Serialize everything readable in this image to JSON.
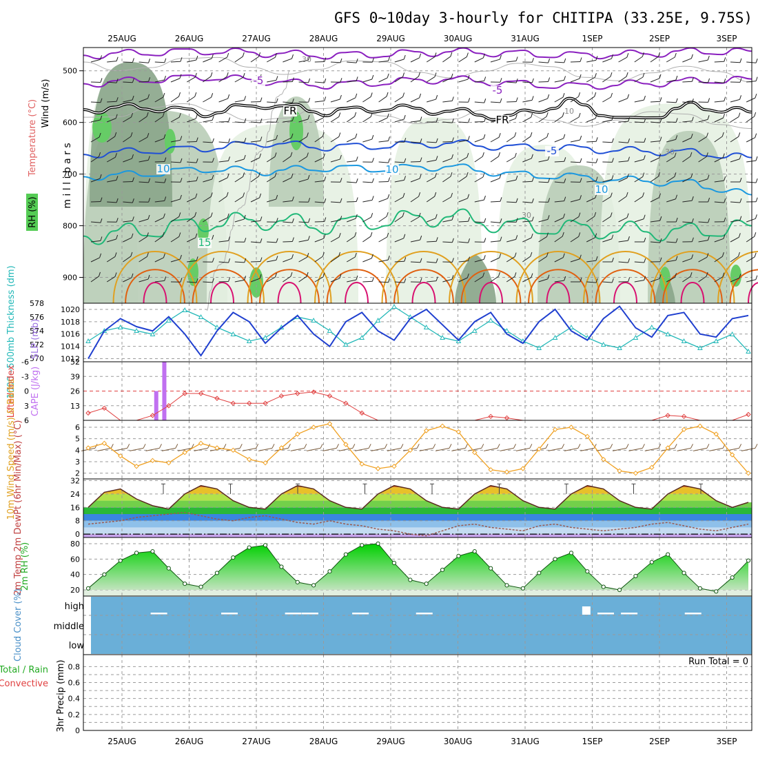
{
  "title": "GFS 0~10day 3-hourly for CHITIPA (33.25E, 9.75S)",
  "dates": [
    "25AUG",
    "26AUG",
    "27AUG",
    "28AUG",
    "29AUG",
    "30AUG",
    "31AUG",
    "1SEP",
    "2SEP",
    "3SEP"
  ],
  "colors": {
    "temp_minus5": "#8a1fbf",
    "temp_0": "#000000",
    "temp_5": "#1f4fd6",
    "temp_10": "#1a98e0",
    "temp_15": "#20b878",
    "temp_20": "#e0a020",
    "temp_25": "#e06010",
    "temp_30": "#d81070",
    "rh_light": "#e6f1e2",
    "rh_mid": "#b9cdb7",
    "rh_dark": "#8aa58a",
    "rh_high": "#66cc66",
    "slp": "#1f3fcf",
    "thickness": "#22b8b8",
    "lifted_index": "#e04040",
    "cape": "#c070f0",
    "wind_speed": "#f0a020",
    "barbs": "#7a5a3a",
    "dewpoint": "#9a5a50",
    "rh2m": "#22cc22",
    "cloud": "#6aafd8"
  },
  "chart_data": [
    {
      "type": "contour-profile",
      "panel": "upper-air",
      "ylabel": "m i l l i b a r s",
      "legend": [
        "Wind (m/s)",
        "Temperature (°C)",
        "RH (%)"
      ],
      "yticks": [
        500,
        600,
        700,
        800,
        900
      ],
      "ylim": [
        455,
        950
      ],
      "contour_labels": [
        {
          "text": "-5",
          "series": "temp_minus5"
        },
        {
          "text": "-5",
          "series": "temp_minus5"
        },
        {
          "text": "FR",
          "series": "temp_0"
        },
        {
          "text": "FR",
          "series": "temp_0"
        },
        {
          "text": "-5",
          "series": "temp_5"
        },
        {
          "text": "10",
          "series": "temp_10"
        },
        {
          "text": "10",
          "series": "temp_10"
        },
        {
          "text": "10",
          "series": "temp_10"
        },
        {
          "text": "15",
          "series": "temp_15"
        },
        {
          "text": "30",
          "series": "rh"
        },
        {
          "text": "10",
          "series": "rh"
        },
        {
          "text": "30",
          "series": "rh"
        },
        {
          "text": "30",
          "series": "rh"
        }
      ],
      "isotherm_levels_mb": {
        "temp_minus5_a": [
          470,
          465,
          462,
          466,
          470,
          468,
          463,
          466,
          470,
          468,
          463,
          462
        ],
        "temp_minus5_b": [
          525,
          518,
          512,
          520,
          528,
          522,
          516,
          524,
          530,
          526,
          520,
          516
        ],
        "temp_0": [
          575,
          570,
          582,
          565,
          580,
          572,
          578,
          590,
          560,
          598,
          568,
          580
        ],
        "temp_5": [
          662,
          655,
          650,
          640,
          648,
          645,
          640,
          648,
          650,
          655,
          658,
          668
        ],
        "temp_10": [
          705,
          700,
          690,
          695,
          688,
          690,
          685,
          700,
          705,
          712,
          718,
          740
        ],
        "temp_15": [
          820,
          810,
          795,
          790,
          800,
          790,
          782,
          800,
          805,
          810,
          812,
          800
        ]
      },
      "barbs_m_s": [
        6,
        7,
        8,
        8,
        7,
        6,
        7,
        8,
        9,
        8,
        7,
        6
      ]
    },
    {
      "type": "line",
      "panel": "slp-thickness",
      "left_axis_label": "1000~500mb Thickness (dm)",
      "right_axis_label": "SLP (mb)",
      "left_ticks": [
        570,
        572,
        574,
        576,
        578
      ],
      "right_ticks": [
        1012,
        1014,
        1016,
        1018,
        1020
      ],
      "left_ylim": [
        569.5,
        578
      ],
      "right_ylim": [
        1011.5,
        1021
      ],
      "series": [
        {
          "name": "SLP (mb)",
          "axis": "right",
          "values": [
            1012.0,
            1016.5,
            1018.5,
            1017.2,
            1016.5,
            1018.8,
            1016.0,
            1012.5,
            1016.5,
            1019.5,
            1018.0,
            1014.5,
            1017.0,
            1019.0,
            1016.0,
            1014.0,
            1018.0,
            1019.5,
            1016.5,
            1015.0,
            1018.5,
            1020.0,
            1017.5,
            1015.0,
            1018.0,
            1019.5,
            1016.0,
            1014.5,
            1018.0,
            1020.0,
            1016.5,
            1015.0,
            1018.5,
            1020.5,
            1017.0,
            1015.5,
            1019.0,
            1019.5,
            1016.0,
            1015.5,
            1018.5,
            1019.0
          ]
        },
        {
          "name": "Thickness (dm)",
          "axis": "left",
          "values": [
            572.5,
            574.0,
            574.5,
            574.0,
            573.5,
            575.5,
            577.0,
            576.0,
            574.5,
            573.5,
            572.5,
            573.0,
            574.5,
            576.0,
            575.5,
            574.0,
            572.0,
            573.0,
            575.5,
            577.5,
            576.0,
            574.5,
            573.0,
            572.5,
            574.0,
            575.5,
            574.0,
            572.5,
            571.5,
            573.0,
            574.5,
            573.0,
            572.0,
            571.5,
            573.0,
            574.5,
            573.5,
            572.5,
            571.5,
            572.5,
            573.5,
            571.0
          ]
        }
      ]
    },
    {
      "type": "line-bar",
      "panel": "stability",
      "left_axis_label": "Lifted Index",
      "right_axis_label": "CAPE (J/kg)",
      "left_ticks": [
        6,
        3,
        0,
        -3,
        -6
      ],
      "right_ticks": [
        13,
        26,
        39,
        52
      ],
      "cape_bars": [
        {
          "day_offset": 0.5,
          "value": 26
        },
        {
          "day_offset": 0.62,
          "value": 52
        }
      ],
      "lifted_index": [
        4.5,
        3.5,
        6.0,
        6.0,
        5.0,
        3.0,
        0.5,
        0.5,
        1.5,
        2.5,
        2.5,
        2.5,
        1.0,
        0.5,
        0.2,
        1.0,
        2.5,
        4.5,
        6.0,
        6.0,
        6.0,
        6.0,
        6.0,
        6.0,
        6.0,
        5.2,
        5.5,
        6.0,
        6.0,
        6.0,
        6.0,
        6.0,
        6.0,
        6.0,
        6.0,
        6.0,
        5.0,
        5.2,
        6.0,
        6.0,
        6.0,
        4.8
      ]
    },
    {
      "type": "line",
      "panel": "wind-10m",
      "ylabel": "10m Wind Speed (m/s) & Barbs",
      "yticks": [
        2,
        3,
        4,
        5,
        6
      ],
      "ylim": [
        1.5,
        6.6
      ],
      "series": [
        {
          "name": "Wind Speed (m/s)",
          "values": [
            4.2,
            4.6,
            3.5,
            2.6,
            3.1,
            2.9,
            3.8,
            4.6,
            4.2,
            4.0,
            3.2,
            2.9,
            4.2,
            5.4,
            6.0,
            6.3,
            4.5,
            2.8,
            2.4,
            2.6,
            4.0,
            5.7,
            6.1,
            5.6,
            3.8,
            2.3,
            2.1,
            2.4,
            4.1,
            5.8,
            6.0,
            5.2,
            3.2,
            2.2,
            2.0,
            2.5,
            4.2,
            5.8,
            6.1,
            5.4,
            3.6,
            2.0
          ]
        }
      ]
    },
    {
      "type": "area",
      "panel": "temperature-2m",
      "ylabel": "2m Temp 2m DewPt (6hr Min/Max) (°C)",
      "yticks": [
        0,
        8,
        16,
        24,
        32
      ],
      "ylim": [
        -2,
        33
      ],
      "series": [
        {
          "name": "2m Temp",
          "values": [
            16,
            25,
            27,
            21,
            17,
            15,
            24,
            29,
            27,
            20,
            16,
            15,
            24,
            29,
            27,
            20,
            16,
            15,
            24,
            29,
            27,
            20,
            16,
            15,
            24,
            29,
            27,
            20,
            16,
            15,
            24,
            29,
            27,
            20,
            16,
            15,
            24,
            29,
            27,
            20,
            16,
            19
          ]
        },
        {
          "name": "2m DewPt",
          "values": [
            6,
            7,
            8,
            10,
            11,
            12,
            13,
            11,
            9,
            8,
            10,
            11,
            9,
            7,
            6,
            8,
            6,
            5,
            3,
            2,
            0,
            -1,
            2,
            5,
            6,
            4,
            3,
            2,
            5,
            6,
            4,
            3,
            2,
            3,
            4,
            6,
            7,
            5,
            3,
            2,
            4,
            6
          ]
        }
      ]
    },
    {
      "type": "area",
      "panel": "rh-2m",
      "ylabel": "2m RH (%)",
      "yticks": [
        20,
        40,
        60,
        80
      ],
      "ylim": [
        12,
        88
      ],
      "series": [
        {
          "name": "2m RH",
          "values": [
            22,
            40,
            58,
            68,
            70,
            48,
            28,
            24,
            42,
            62,
            75,
            78,
            50,
            30,
            26,
            44,
            66,
            78,
            80,
            55,
            33,
            28,
            46,
            64,
            70,
            48,
            26,
            22,
            42,
            60,
            68,
            44,
            24,
            20,
            38,
            56,
            66,
            42,
            22,
            18,
            36,
            58
          ]
        }
      ]
    },
    {
      "type": "bar",
      "panel": "cloud-cover",
      "ylabel": "Cloud Cover (%)",
      "yticks": [
        "high",
        "middle",
        "low"
      ],
      "gaps": [
        {
          "day_offset": 0.55,
          "layer": "high"
        },
        {
          "day_offset": 1.6,
          "layer": "high"
        },
        {
          "day_offset": 2.55,
          "layer": "high"
        },
        {
          "day_offset": 2.8,
          "layer": "high"
        },
        {
          "day_offset": 3.55,
          "layer": "high"
        },
        {
          "day_offset": 4.5,
          "layer": "high"
        },
        {
          "day_offset": 7.2,
          "layer": "high"
        },
        {
          "day_offset": 7.55,
          "layer": "high"
        },
        {
          "day_offset": 8.5,
          "layer": "high"
        }
      ]
    },
    {
      "type": "bar",
      "panel": "precipitation",
      "ylabel": "3hr Precip (mm)",
      "legend": [
        "Total / Rain",
        "Convective"
      ],
      "yticks": [
        0,
        0.2,
        0.4,
        0.6,
        0.8
      ],
      "ylim": [
        0,
        0.95
      ],
      "annotation": "Run Total = 0",
      "values": []
    }
  ]
}
